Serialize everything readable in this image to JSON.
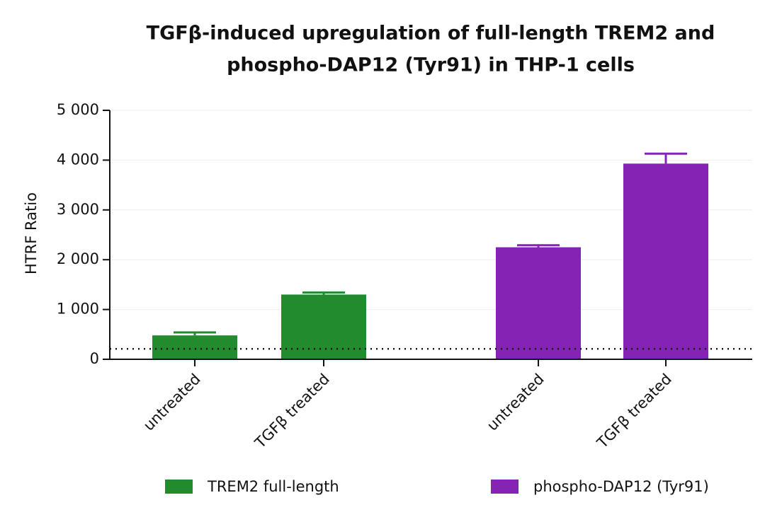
{
  "chart_data": {
    "type": "bar",
    "title": [
      "TGFβ-induced upregulation of full-length TREM2 and",
      "phospho-DAP12 (Tyr91) in THP-1 cells"
    ],
    "y_label": "HTRF Ratio",
    "categories": [
      "untreated",
      "TGFβ treated",
      "untreated",
      "TGFβ treated"
    ],
    "series": [
      {
        "name": "TREM2 full-length",
        "color": "#228b2e",
        "values": [
          480,
          1300,
          null,
          null
        ],
        "errors": [
          60,
          40,
          null,
          null
        ]
      },
      {
        "name": "phospho-DAP12 (Tyr91)",
        "color": "#8524b4",
        "values": [
          null,
          null,
          2250,
          3930
        ],
        "errors": [
          null,
          null,
          40,
          200
        ]
      }
    ],
    "threshold": 210,
    "ylim": [
      0,
      5000
    ],
    "yticks": [
      0,
      {
        "value": 1000,
        "label": "1 000"
      },
      {
        "value": 2000,
        "label": "2 000"
      },
      {
        "value": 3000,
        "label": "3 000"
      },
      {
        "value": 4000,
        "label": "4 000"
      },
      {
        "value": 5000,
        "label": "5 000"
      }
    ],
    "grid": true,
    "legend": "bottom"
  }
}
